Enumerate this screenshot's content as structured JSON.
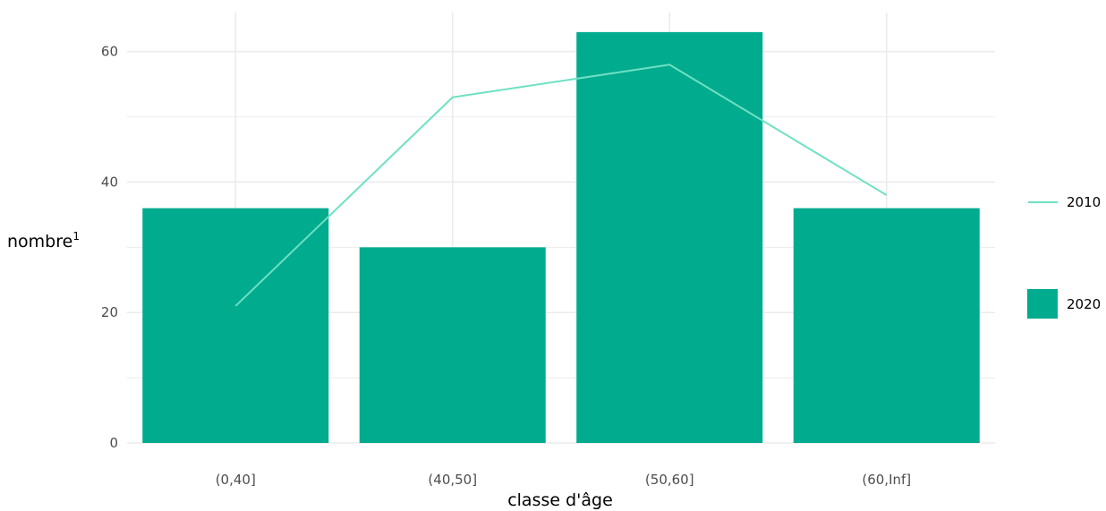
{
  "chart_data": {
    "type": "bar",
    "title": "",
    "xlabel": "classe d'âge",
    "ylabel": "nombre",
    "ylabel_superscript": "1",
    "categories": [
      "(0,40]",
      "(40,50]",
      "(50,60]",
      "(60,Inf]"
    ],
    "series": [
      {
        "name": "2020",
        "type": "bar",
        "values": [
          36,
          30,
          63,
          36
        ],
        "color": "#00AB8E"
      },
      {
        "name": "2010",
        "type": "line",
        "values": [
          21,
          53,
          58,
          38
        ],
        "color": "#6EE0C4"
      }
    ],
    "yticks": [
      0,
      20,
      40,
      60
    ],
    "ylim": [
      0,
      66
    ],
    "grid": true,
    "legend_position": "right",
    "legend": [
      "2010",
      "2020"
    ]
  },
  "colors": {
    "grid": "#EBEBEB",
    "background": "#FFFFFF"
  }
}
